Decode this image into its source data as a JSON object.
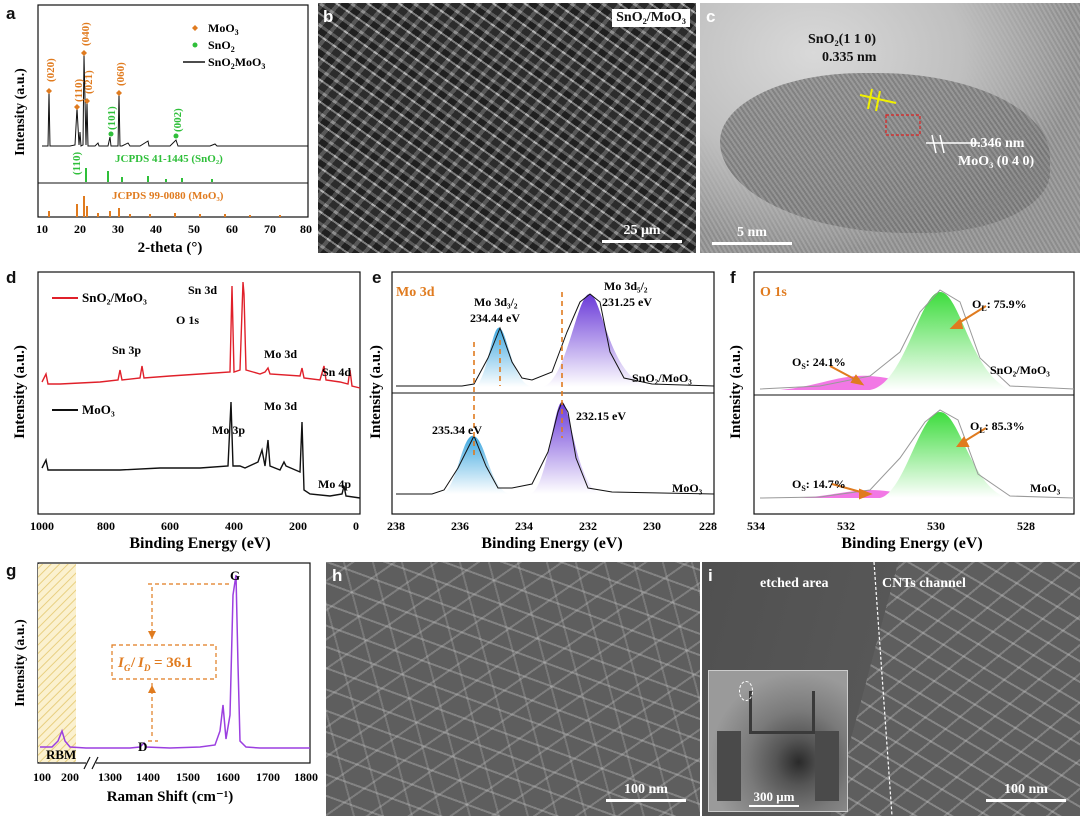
{
  "panels": {
    "a": {
      "label": "a",
      "ylabel": "Intensity (a.u.)",
      "xlabel": "2-theta (°)",
      "xticks": [
        "10",
        "20",
        "30",
        "40",
        "50",
        "60",
        "70",
        "80"
      ],
      "legend": {
        "moo3": "MoO",
        "sno2": "SnO",
        "combo": "SnO/MoO",
        "sub": "3",
        "sub2": "2"
      },
      "peaks": [
        "(020)",
        "(110)",
        "(040)",
        "(021)",
        "(101)",
        "(060)",
        "(002)",
        "(110)"
      ],
      "ref1": "JCPDS 41-1445 (SnO₂)",
      "ref2": "JCPDS 99-0080 (MoO₃)"
    },
    "b": {
      "label": "b",
      "title": "SnO₂/MoO₃",
      "scale": "25 μm"
    },
    "c": {
      "label": "c",
      "ann1a": "SnO₂(1 1 0)",
      "ann1b": "0.335 nm",
      "ann2a": "0.346 nm",
      "ann2b": "MoO₃ (0 4 0)",
      "scale": "5 nm"
    },
    "d": {
      "label": "d",
      "ylabel": "Intensity (a.u.)",
      "xlabel": "Binding Energy (eV)",
      "xticks": [
        "1000",
        "800",
        "600",
        "400",
        "200",
        "0"
      ],
      "legend1": "SnO₂/MoO₃",
      "legend2": "MoO₃",
      "peaks": [
        "Sn 3d",
        "O 1s",
        "Sn 3p",
        "Mo 3d",
        "Sn 4d",
        "Mo 3d",
        "Mo 3p",
        "Mo 4p"
      ]
    },
    "e": {
      "label": "e",
      "title": "Mo 3d",
      "ylabel": "Intensity (a.u.)",
      "xlabel": "Binding Energy (eV)",
      "xticks": [
        "238",
        "236",
        "234",
        "232",
        "230",
        "228"
      ],
      "ann1a": "Mo 3d₃/₂",
      "ann1b": "234.44 eV",
      "ann2a": "Mo 3d₅/₂",
      "ann2b": "231.25 eV",
      "ann3": "235.34 eV",
      "ann4": "232.15 eV",
      "top": "SnO₂/MoO₃",
      "bottom": "MoO₃"
    },
    "f": {
      "label": "f",
      "title": "O 1s",
      "ylabel": "Intensity (a.u.)",
      "xlabel": "Binding Energy (eV)",
      "xticks": [
        "534",
        "532",
        "530",
        "528"
      ],
      "ol1": "O",
      "ol1v": ": 75.9%",
      "os1": "O",
      "os1v": ": 24.1%",
      "ol2": "O",
      "ol2v": ": 85.3%",
      "os2": "O",
      "os2v": ": 14.7%",
      "subL": "L",
      "subS": "S",
      "top": "SnO₂/MoO₃",
      "bottom": "MoO₃"
    },
    "g": {
      "label": "g",
      "ylabel": "Intensity (a.u.)",
      "xlabel": "Raman Shift (cm⁻¹)",
      "xticks": [
        "100",
        "200",
        "1300",
        "1400",
        "1500",
        "1600",
        "1700",
        "1800"
      ],
      "ratio": "= 36.1",
      "rbm": "RBM",
      "d": "D",
      "g": "G"
    },
    "h": {
      "label": "h",
      "scale": "100 nm"
    },
    "i": {
      "label": "i",
      "etched": "etched area",
      "channel": "CNTs channel",
      "scale_inset": "300 μm",
      "scale": "100 nm"
    }
  },
  "colors": {
    "orange": "#e07b1f",
    "green": "#2fbf3a",
    "red": "#e0202a",
    "purple": "#7a3fd1",
    "blue": "#3fa8e0",
    "magenta": "#e040e0",
    "hatch": "#f0dca0"
  }
}
